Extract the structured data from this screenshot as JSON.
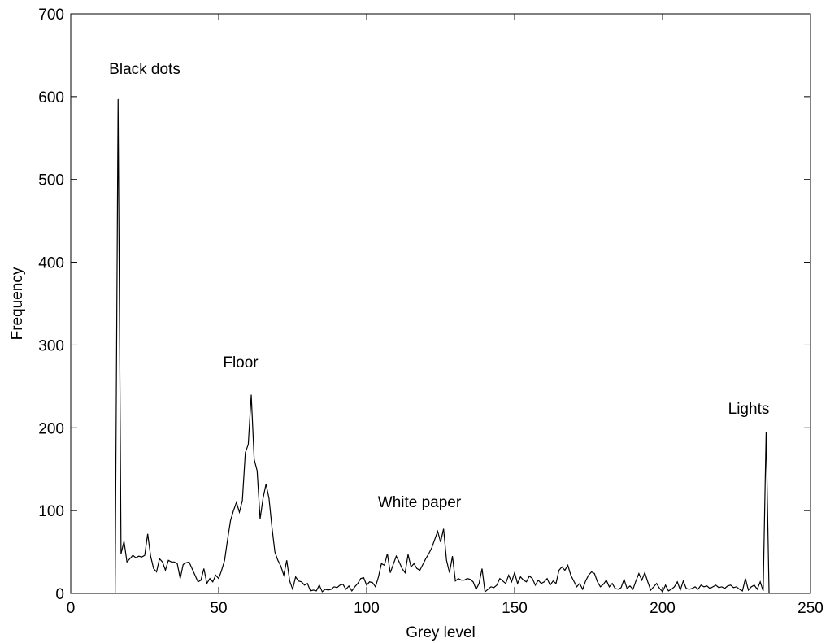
{
  "chart_data": {
    "type": "line",
    "xlabel": "Grey level",
    "ylabel": "Frequency",
    "xlim": [
      0,
      250
    ],
    "ylim": [
      0,
      700
    ],
    "xticks": [
      0,
      50,
      100,
      150,
      200,
      250
    ],
    "yticks": [
      0,
      100,
      200,
      300,
      400,
      500,
      600,
      700
    ],
    "grid": false,
    "annotations": [
      "Black dots",
      "Floor",
      "White paper",
      "Lights"
    ],
    "series": [
      {
        "color": "#000000",
        "x": [
          15,
          16,
          17,
          18,
          19,
          20,
          21,
          22,
          23,
          24,
          25,
          26,
          27,
          28,
          29,
          30,
          31,
          32,
          33,
          34,
          35,
          36,
          37,
          38,
          39,
          40,
          41,
          42,
          43,
          44,
          45,
          46,
          47,
          48,
          49,
          50,
          51,
          52,
          53,
          54,
          55,
          56,
          57,
          58,
          59,
          60,
          61,
          62,
          63,
          64,
          65,
          66,
          67,
          68,
          69,
          70,
          71,
          72,
          73,
          74,
          75,
          76,
          77,
          78,
          79,
          80,
          81,
          82,
          83,
          84,
          85,
          86,
          87,
          88,
          89,
          90,
          91,
          92,
          93,
          94,
          95,
          96,
          97,
          98,
          99,
          100,
          101,
          102,
          103,
          104,
          105,
          106,
          107,
          108,
          109,
          110,
          111,
          112,
          113,
          114,
          115,
          116,
          117,
          118,
          119,
          120,
          121,
          122,
          123,
          124,
          125,
          126,
          127,
          128,
          129,
          130,
          131,
          132,
          133,
          134,
          135,
          136,
          137,
          138,
          139,
          140,
          141,
          142,
          143,
          144,
          145,
          146,
          147,
          148,
          149,
          150,
          151,
          152,
          153,
          154,
          155,
          156,
          157,
          158,
          159,
          160,
          161,
          162,
          163,
          164,
          165,
          166,
          167,
          168,
          169,
          170,
          171,
          172,
          173,
          174,
          175,
          176,
          177,
          178,
          179,
          180,
          181,
          182,
          183,
          184,
          185,
          186,
          187,
          188,
          189,
          190,
          191,
          192,
          193,
          194,
          195,
          196,
          197,
          198,
          199,
          200,
          201,
          202,
          203,
          204,
          205,
          206,
          207,
          208,
          209,
          210,
          211,
          212,
          213,
          214,
          215,
          216,
          217,
          218,
          219,
          220,
          221,
          222,
          223,
          224,
          225,
          226,
          227,
          228,
          229,
          230,
          231,
          232,
          233,
          234,
          235,
          236
        ],
        "values": [
          0,
          597,
          48,
          63,
          38,
          42,
          46,
          43,
          45,
          44,
          46,
          72,
          45,
          30,
          26,
          42,
          38,
          28,
          40,
          38,
          38,
          36,
          18,
          35,
          37,
          38,
          30,
          22,
          14,
          16,
          30,
          12,
          18,
          14,
          22,
          18,
          28,
          40,
          65,
          88,
          100,
          110,
          98,
          112,
          170,
          180,
          240,
          162,
          148,
          90,
          115,
          132,
          115,
          80,
          50,
          40,
          33,
          22,
          40,
          15,
          5,
          20,
          15,
          14,
          10,
          12,
          3,
          4,
          3,
          10,
          2,
          5,
          4,
          5,
          8,
          7,
          10,
          11,
          5,
          9,
          3,
          8,
          12,
          18,
          19,
          10,
          14,
          13,
          8,
          20,
          36,
          34,
          48,
          25,
          35,
          45,
          38,
          30,
          25,
          47,
          32,
          36,
          30,
          28,
          35,
          42,
          48,
          55,
          65,
          75,
          62,
          78,
          40,
          25,
          45,
          15,
          18,
          16,
          16,
          18,
          17,
          14,
          5,
          12,
          30,
          2,
          5,
          8,
          7,
          10,
          18,
          15,
          12,
          22,
          14,
          25,
          12,
          20,
          16,
          14,
          21,
          18,
          10,
          16,
          12,
          14,
          18,
          10,
          15,
          12,
          28,
          32,
          28,
          34,
          22,
          15,
          8,
          12,
          5,
          15,
          22,
          26,
          24,
          14,
          8,
          11,
          16,
          8,
          12,
          6,
          5,
          7,
          17,
          6,
          9,
          5,
          15,
          24,
          16,
          25,
          14,
          4,
          8,
          12,
          6,
          2,
          10,
          3,
          5,
          8,
          14,
          4,
          15,
          6,
          5,
          6,
          8,
          5,
          10,
          8,
          9,
          6,
          8,
          10,
          7,
          8,
          6,
          9,
          10,
          7,
          8,
          5,
          3,
          18,
          4,
          8,
          10,
          5,
          14,
          3,
          195,
          0
        ]
      }
    ]
  }
}
